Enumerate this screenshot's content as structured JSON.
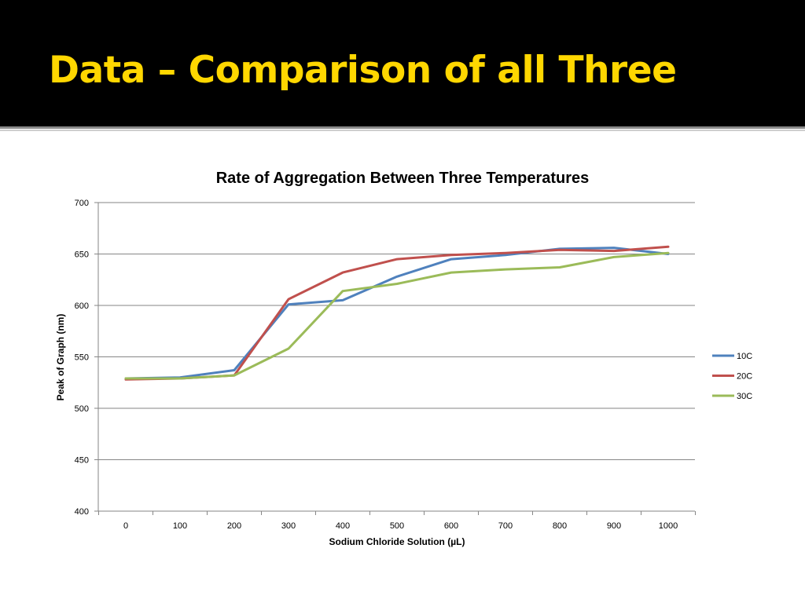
{
  "slide": {
    "title": "Data – Comparison of all Three"
  },
  "colors": {
    "title_bar": "#000000",
    "title_text": "#FFD700",
    "series_10C": "#4F81BD",
    "series_20C": "#C0504D",
    "series_30C": "#9BBB59"
  },
  "chart_data": {
    "type": "line",
    "title": "Rate of Aggregation Between Three Temperatures",
    "xlabel": "Sodium Chloride Solution (µL)",
    "ylabel": "Peak of Graph (nm)",
    "x": [
      0,
      100,
      200,
      300,
      400,
      500,
      600,
      700,
      800,
      900,
      1000
    ],
    "xticks": [
      "0",
      "100",
      "200",
      "300",
      "400",
      "500",
      "600",
      "700",
      "800",
      "900",
      "1000"
    ],
    "yticks": [
      "400",
      "450",
      "500",
      "550",
      "600",
      "650",
      "700"
    ],
    "ylim": [
      400,
      700
    ],
    "grid": true,
    "legend_position": "right",
    "series": [
      {
        "name": "10C",
        "color": "#4F81BD",
        "values": [
          529,
          530,
          537,
          601,
          605,
          628,
          645,
          649,
          655,
          656,
          650
        ]
      },
      {
        "name": "20C",
        "color": "#C0504D",
        "values": [
          528,
          529,
          532,
          606,
          632,
          645,
          649,
          651,
          654,
          653,
          657
        ]
      },
      {
        "name": "30C",
        "color": "#9BBB59",
        "values": [
          529,
          529,
          532,
          558,
          614,
          621,
          632,
          635,
          637,
          647,
          651
        ]
      }
    ]
  }
}
